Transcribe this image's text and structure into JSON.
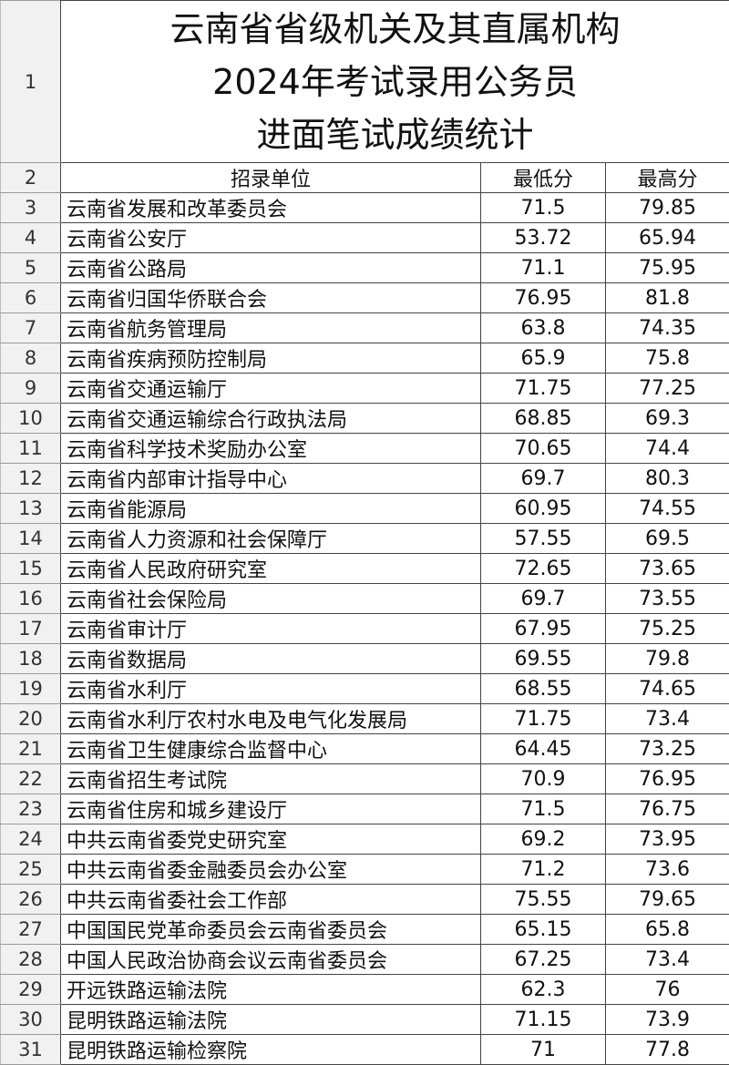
{
  "title_lines": [
    "云南省省级机关及其直属机构",
    "2024年考试录用公务员",
    "进面笔试成绩统计"
  ],
  "title_row_number": "1",
  "header": {
    "row_number": "2",
    "unit": "招录单位",
    "min": "最低分",
    "max": "最高分"
  },
  "rows": [
    {
      "n": "3",
      "unit": "云南省发展和改革委员会",
      "min": "71.5",
      "max": "79.85"
    },
    {
      "n": "4",
      "unit": "云南省公安厅",
      "min": "53.72",
      "max": "65.94"
    },
    {
      "n": "5",
      "unit": "云南省公路局",
      "min": "71.1",
      "max": "75.95"
    },
    {
      "n": "6",
      "unit": "云南省归国华侨联合会",
      "min": "76.95",
      "max": "81.8"
    },
    {
      "n": "7",
      "unit": "云南省航务管理局",
      "min": "63.8",
      "max": "74.35"
    },
    {
      "n": "8",
      "unit": "云南省疾病预防控制局",
      "min": "65.9",
      "max": "75.8"
    },
    {
      "n": "9",
      "unit": "云南省交通运输厅",
      "min": "71.75",
      "max": "77.25"
    },
    {
      "n": "10",
      "unit": "云南省交通运输综合行政执法局",
      "min": "68.85",
      "max": "69.3"
    },
    {
      "n": "11",
      "unit": "云南省科学技术奖励办公室",
      "min": "70.65",
      "max": "74.4"
    },
    {
      "n": "12",
      "unit": "云南省内部审计指导中心",
      "min": "69.7",
      "max": "80.3"
    },
    {
      "n": "13",
      "unit": "云南省能源局",
      "min": "60.95",
      "max": "74.55"
    },
    {
      "n": "14",
      "unit": "云南省人力资源和社会保障厅",
      "min": "57.55",
      "max": "69.5"
    },
    {
      "n": "15",
      "unit": "云南省人民政府研究室",
      "min": "72.65",
      "max": "73.65"
    },
    {
      "n": "16",
      "unit": "云南省社会保险局",
      "min": "69.7",
      "max": "73.55"
    },
    {
      "n": "17",
      "unit": "云南省审计厅",
      "min": "67.95",
      "max": "75.25"
    },
    {
      "n": "18",
      "unit": "云南省数据局",
      "min": "69.55",
      "max": "79.8"
    },
    {
      "n": "19",
      "unit": "云南省水利厅",
      "min": "68.55",
      "max": "74.65"
    },
    {
      "n": "20",
      "unit": "云南省水利厅农村水电及电气化发展局",
      "min": "71.75",
      "max": "73.4"
    },
    {
      "n": "21",
      "unit": "云南省卫生健康综合监督中心",
      "min": "64.45",
      "max": "73.25"
    },
    {
      "n": "22",
      "unit": "云南省招生考试院",
      "min": "70.9",
      "max": "76.95"
    },
    {
      "n": "23",
      "unit": "云南省住房和城乡建设厅",
      "min": "71.5",
      "max": "76.75"
    },
    {
      "n": "24",
      "unit": "中共云南省委党史研究室",
      "min": "69.2",
      "max": "73.95"
    },
    {
      "n": "25",
      "unit": "中共云南省委金融委员会办公室",
      "min": "71.2",
      "max": "73.6"
    },
    {
      "n": "26",
      "unit": "中共云南省委社会工作部",
      "min": "75.55",
      "max": "79.65"
    },
    {
      "n": "27",
      "unit": "中国国民党革命委员会云南省委员会",
      "min": "65.15",
      "max": "65.8"
    },
    {
      "n": "28",
      "unit": "中国人民政治协商会议云南省委员会",
      "min": "67.25",
      "max": "73.4"
    },
    {
      "n": "29",
      "unit": "开远铁路运输法院",
      "min": "62.3",
      "max": "76"
    },
    {
      "n": "30",
      "unit": "昆明铁路运输法院",
      "min": "71.15",
      "max": "73.9"
    },
    {
      "n": "31",
      "unit": "昆明铁路运输检察院",
      "min": "71",
      "max": "77.8"
    }
  ]
}
